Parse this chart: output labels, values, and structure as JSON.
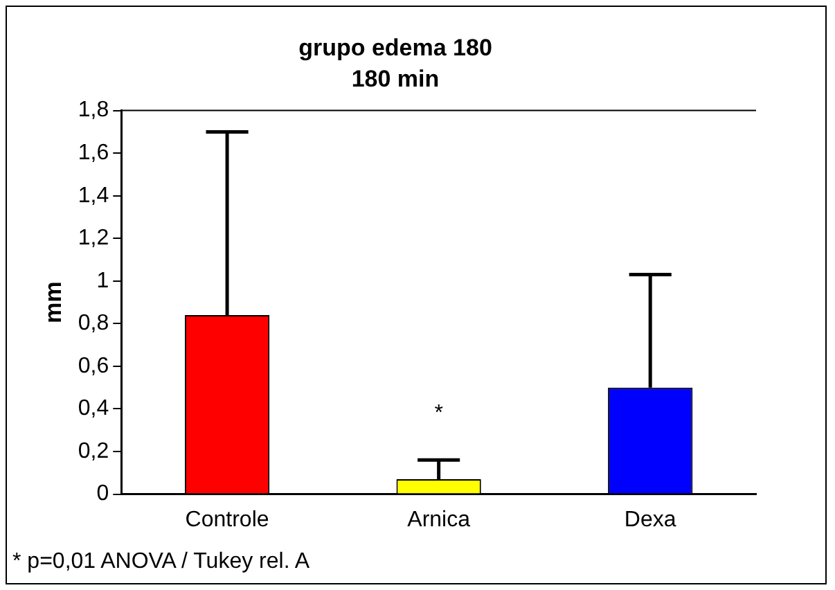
{
  "chart_data": {
    "type": "bar",
    "title": "grupo edema 180",
    "subtitle": "180 min",
    "ylabel": "mm",
    "categories": [
      "Controle",
      "Arnica",
      "Dexa"
    ],
    "values": [
      0.84,
      0.07,
      0.5
    ],
    "colors": [
      "#ff0000",
      "#ffff00",
      "#0000ff"
    ],
    "errors": [
      [
        0.84,
        1.7
      ],
      [
        0.07,
        0.16
      ],
      [
        0.5,
        1.03
      ]
    ],
    "ylim": [
      0,
      1.8
    ],
    "yticks": [
      {
        "value": 0,
        "label": "0"
      },
      {
        "value": 0.2,
        "label": "0,2"
      },
      {
        "value": 0.4,
        "label": "0,4"
      },
      {
        "value": 0.6,
        "label": "0,6"
      },
      {
        "value": 0.8,
        "label": "0,8"
      },
      {
        "value": 1,
        "label": "1"
      },
      {
        "value": 1.2,
        "label": "1,2"
      },
      {
        "value": 1.4,
        "label": "1,4"
      },
      {
        "value": 1.6,
        "label": "1,6"
      },
      {
        "value": 1.8,
        "label": "1,8"
      }
    ],
    "grid": false,
    "legend": false,
    "annotations": [
      "*",
      "* p=0,01 ANOVA / Tukey rel. A"
    ]
  }
}
